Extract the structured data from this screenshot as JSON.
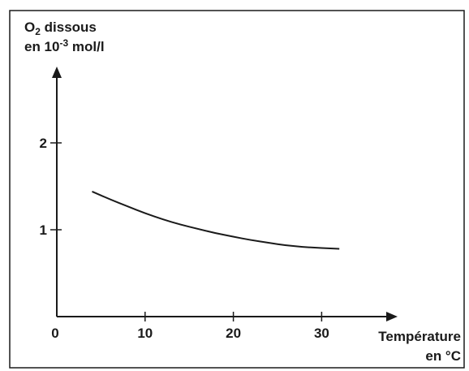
{
  "chart_data": {
    "type": "line",
    "ylabel": {
      "lines": [
        {
          "parts": [
            {
              "text": "O"
            },
            {
              "text": "2",
              "role": "sub"
            },
            {
              "text": " dissous"
            }
          ]
        },
        {
          "parts": [
            {
              "text": "en 10"
            },
            {
              "text": "-3",
              "role": "sup"
            },
            {
              "text": " mol/l"
            }
          ]
        }
      ]
    },
    "xlabel": {
      "lines": [
        {
          "parts": [
            {
              "text": "Température"
            }
          ]
        },
        {
          "parts": [
            {
              "text": "en °C"
            }
          ]
        }
      ]
    },
    "x_ticks": [
      0,
      10,
      20,
      30
    ],
    "y_ticks": [
      1,
      2
    ],
    "xlim": [
      0,
      36
    ],
    "ylim": [
      0,
      2.75
    ],
    "grid": false,
    "series": [
      {
        "x": [
          4,
          6,
          8,
          10,
          12,
          14,
          16,
          18,
          20,
          22,
          24,
          26,
          28,
          30,
          32
        ],
        "y": [
          1.44,
          1.35,
          1.27,
          1.19,
          1.12,
          1.06,
          1.01,
          0.96,
          0.92,
          0.88,
          0.85,
          0.82,
          0.8,
          0.79,
          0.78
        ]
      }
    ],
    "colors": {
      "ink": "#1a1a1a"
    }
  }
}
